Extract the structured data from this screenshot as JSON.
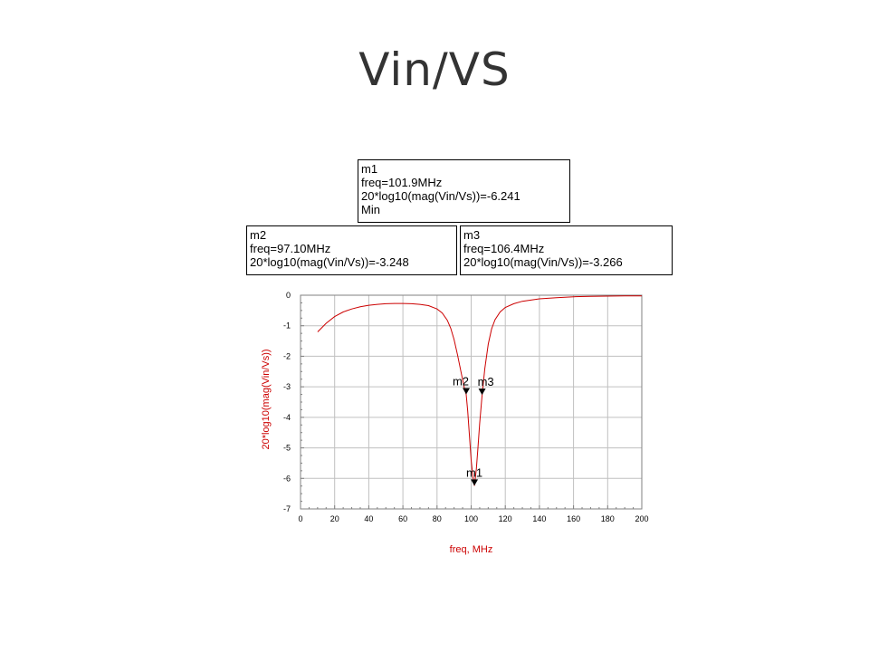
{
  "slide": {
    "title": "Vin/VS"
  },
  "markers": [
    {
      "id": "m1",
      "lines": [
        "m1",
        "freq=101.9MHz",
        "20*log10(mag(Vin/Vs))=-6.241",
        "Min"
      ]
    },
    {
      "id": "m2",
      "lines": [
        "m2",
        "freq=97.10MHz",
        "20*log10(mag(Vin/Vs))=-3.248"
      ]
    },
    {
      "id": "m3",
      "lines": [
        "m3",
        "freq=106.4MHz",
        "20*log10(mag(Vin/Vs))=-3.266"
      ]
    }
  ],
  "colors": {
    "trace": "#cc0000",
    "axis_label": "#cc0000",
    "grid": "#c0c0c0",
    "frame": "#808080"
  },
  "chart_data": {
    "type": "line",
    "title": "",
    "xlabel": "freq, MHz",
    "ylabel": "20*log10(mag(Vin/Vs))",
    "xlim": [
      0,
      200
    ],
    "ylim": [
      -7,
      0
    ],
    "xticks": [
      0,
      20,
      40,
      60,
      80,
      100,
      120,
      140,
      160,
      180,
      200
    ],
    "yticks": [
      0,
      -1,
      -2,
      -3,
      -4,
      -5,
      -6,
      -7
    ],
    "xtick_labels": [
      "0",
      "20",
      "40",
      "60",
      "80",
      "100",
      "120",
      "140",
      "160",
      "180",
      "200"
    ],
    "ytick_labels": [
      "0",
      "-1",
      "-2",
      "-3",
      "-4",
      "-5",
      "-6",
      "-7"
    ],
    "grid": true,
    "legend": "none",
    "series": [
      {
        "x": [
          10,
          15,
          20,
          25,
          30,
          35,
          40,
          45,
          50,
          55,
          60,
          65,
          70,
          75,
          80,
          83,
          86,
          88,
          90,
          92,
          94,
          96,
          97.1,
          98,
          99,
          100,
          101,
          101.9,
          103,
          104,
          105,
          106.4,
          108,
          110,
          112,
          114,
          117,
          120,
          125,
          130,
          140,
          150,
          160,
          170,
          180,
          190,
          200
        ],
        "y": [
          -1.2,
          -0.92,
          -0.7,
          -0.55,
          -0.45,
          -0.38,
          -0.33,
          -0.3,
          -0.28,
          -0.27,
          -0.27,
          -0.28,
          -0.3,
          -0.34,
          -0.45,
          -0.58,
          -0.82,
          -1.08,
          -1.45,
          -1.95,
          -2.5,
          -3.05,
          -3.248,
          -3.8,
          -4.6,
          -5.4,
          -5.95,
          -6.241,
          -5.7,
          -5.0,
          -4.2,
          -3.266,
          -2.4,
          -1.6,
          -1.1,
          -0.8,
          -0.55,
          -0.4,
          -0.28,
          -0.2,
          -0.12,
          -0.08,
          -0.05,
          -0.04,
          -0.03,
          -0.02,
          -0.02
        ]
      }
    ],
    "markers": [
      {
        "label": "m1",
        "x": 101.9,
        "y": -6.241
      },
      {
        "label": "m2",
        "x": 97.1,
        "y": -3.248
      },
      {
        "label": "m3",
        "x": 106.4,
        "y": -3.266
      }
    ]
  }
}
